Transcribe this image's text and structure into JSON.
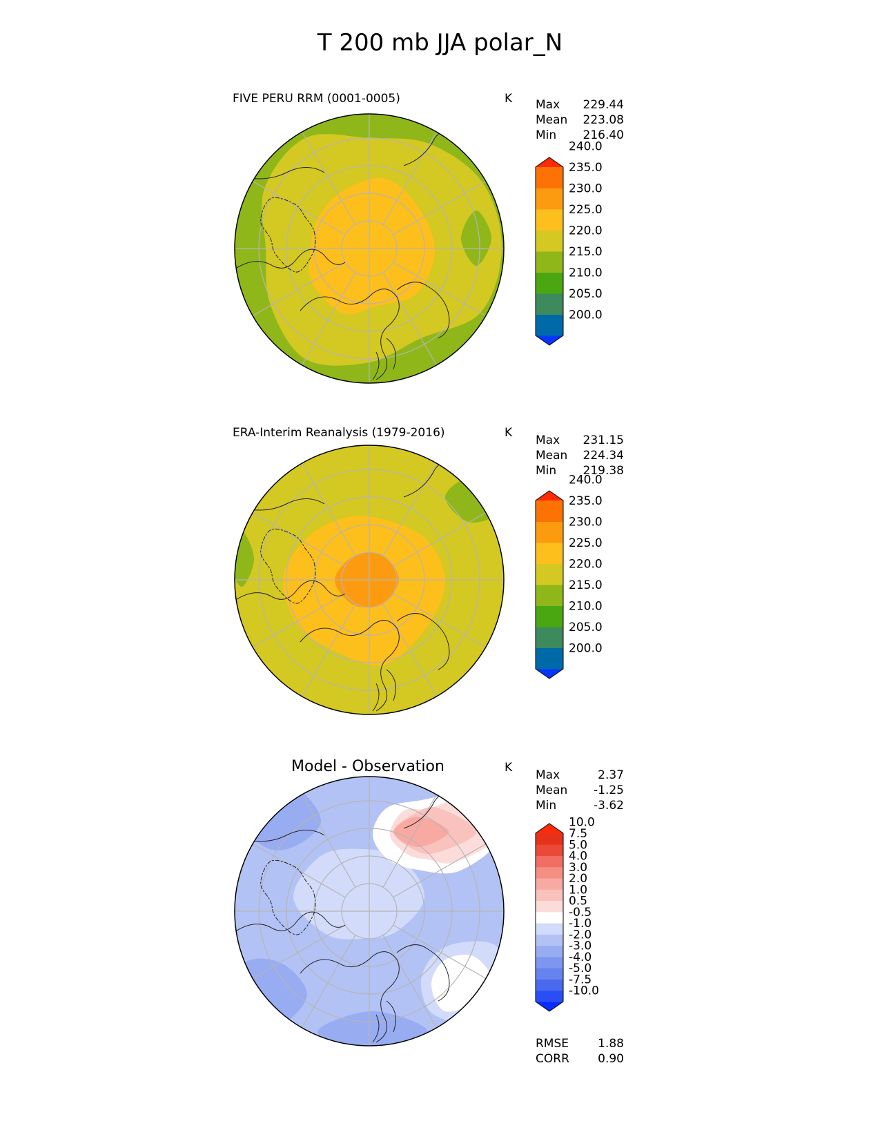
{
  "figure_title": "T 200 mb JJA polar_N",
  "colors": {
    "grid": "#b5b5b5",
    "coast": "#222222",
    "frame": "#000000"
  },
  "chart_data": [
    {
      "type": "polar_map",
      "title": "FIVE PERU RRM (0001-0005)",
      "units": "K",
      "stats": {
        "max": "229.44",
        "mean": "223.08",
        "min": "216.40"
      },
      "stat_labels": {
        "max": "Max",
        "mean": "Mean",
        "min": "Min"
      },
      "colorbar": {
        "levels": [
          "200.0",
          "205.0",
          "210.0",
          "215.0",
          "220.0",
          "225.0",
          "230.0",
          "235.0",
          "240.0"
        ],
        "colors": [
          "#0536ff",
          "#006aa8",
          "#3d8a5c",
          "#4aa711",
          "#8fb71a",
          "#d4c822",
          "#fdbf1c",
          "#fd9b10",
          "#fd7204",
          "#ff2b05"
        ]
      },
      "field_colors": {
        "outer": "#8fb71a",
        "mid": "#d4c822",
        "core": "#fdbf1c"
      }
    },
    {
      "type": "polar_map",
      "title": "ERA-Interim Reanalysis (1979-2016)",
      "units": "K",
      "stats": {
        "max": "231.15",
        "mean": "224.34",
        "min": "219.38"
      },
      "stat_labels": {
        "max": "Max",
        "mean": "Mean",
        "min": "Min"
      },
      "colorbar": {
        "levels": [
          "200.0",
          "205.0",
          "210.0",
          "215.0",
          "220.0",
          "225.0",
          "230.0",
          "235.0",
          "240.0"
        ],
        "colors": [
          "#0536ff",
          "#006aa8",
          "#3d8a5c",
          "#4aa711",
          "#8fb71a",
          "#d4c822",
          "#fdbf1c",
          "#fd9b10",
          "#fd7204",
          "#ff2b05"
        ]
      },
      "field_colors": {
        "outer": "#8fb71a",
        "mid": "#d4c822",
        "core": "#fdbf1c",
        "peak": "#fd9b10"
      }
    },
    {
      "type": "polar_map",
      "title": "Model - Observation",
      "units": "K",
      "stats": {
        "max": "2.37",
        "mean": "-1.25",
        "min": "-3.62"
      },
      "stat_labels": {
        "max": "Max",
        "mean": "Mean",
        "min": "Min"
      },
      "extra_stats": {
        "rmse": "1.88",
        "corr": "0.90"
      },
      "extra_labels": {
        "rmse": "RMSE",
        "corr": "CORR"
      },
      "colorbar": {
        "levels": [
          "-10.0",
          "-7.5",
          "-5.0",
          "-4.0",
          "-3.0",
          "-2.0",
          "-1.0",
          "-0.5",
          "0.5",
          "1.0",
          "2.0",
          "3.0",
          "4.0",
          "5.0",
          "7.5",
          "10.0"
        ],
        "colors": [
          "#0a2cff",
          "#2a4ef5",
          "#4a69ee",
          "#6683ee",
          "#7d97f0",
          "#98acf2",
          "#b3c2f5",
          "#d2dbf9",
          "#ffffff",
          "#fbdcda",
          "#f9c2bd",
          "#f8aaa2",
          "#f58e83",
          "#f06e62",
          "#ea4a37",
          "#e7321a",
          "#ff2b05"
        ]
      },
      "field_colors": {
        "base": "#b3c2f5",
        "dark": "#98acf2",
        "light": "#d2dbf9",
        "white": "#ffffff",
        "warm": "#fbdcda",
        "warmer": "#f9c2bd",
        "warmest": "#f8aaa2"
      }
    }
  ]
}
